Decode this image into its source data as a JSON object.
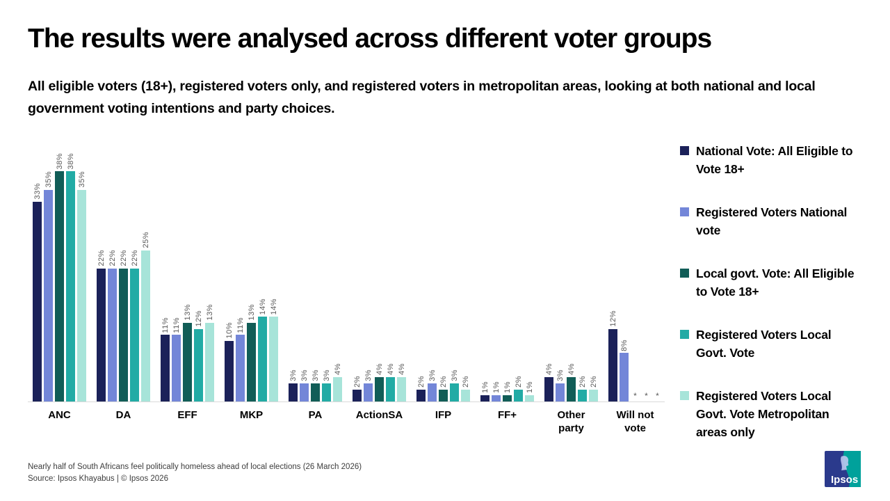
{
  "page": {
    "title": "The results were analysed across different voter groups",
    "subtitle": "All eligible voters (18+), registered voters only, and registered voters in metropolitan areas, looking at both national and local government voting intentions and party choices."
  },
  "chart_data": {
    "type": "bar",
    "categories": [
      "ANC",
      "DA",
      "EFF",
      "MKP",
      "PA",
      "ActionSA",
      "IFP",
      "FF+",
      "Other party",
      "Will not vote"
    ],
    "series": [
      {
        "name": "National Vote: All Eligible to Vote 18+",
        "color": "#1b2159",
        "values": [
          33,
          22,
          11,
          10,
          3,
          2,
          2,
          1,
          4,
          12
        ]
      },
      {
        "name": "Registered Voters National vote",
        "color": "#7386d8",
        "values": [
          35,
          22,
          11,
          11,
          3,
          3,
          3,
          1,
          3,
          8
        ]
      },
      {
        "name": "Local govt. Vote: All Eligible to Vote 18+",
        "color": "#115d57",
        "values": [
          38,
          22,
          13,
          13,
          3,
          4,
          2,
          1,
          4,
          null
        ]
      },
      {
        "name": "Registered Voters Local Govt. Vote",
        "color": "#22aba5",
        "values": [
          38,
          22,
          12,
          14,
          3,
          4,
          3,
          2,
          2,
          null
        ]
      },
      {
        "name": "Registered Voters Local Govt. Vote Metropolitan areas only",
        "color": "#a7e4d9",
        "values": [
          35,
          25,
          13,
          14,
          4,
          4,
          2,
          1,
          2,
          null
        ]
      }
    ],
    "value_suffix": "%",
    "null_marker": "*",
    "ylim": [
      0,
      40
    ],
    "grid": false,
    "legend_position": "right",
    "value_label_style": "rotated-90-gray"
  },
  "footer": {
    "note": "Nearly half of South Africans feel politically homeless ahead of local elections  (26 March 2026)",
    "source": "Source: Ipsos Khayabus | © Ipsos 2026"
  },
  "logo": {
    "text": "Ipsos",
    "blue": "#2b3a8c",
    "teal": "#00a19b"
  },
  "style_colors": {
    "value_label_gray": "#595959",
    "axis_line": "#d9d9d9"
  }
}
